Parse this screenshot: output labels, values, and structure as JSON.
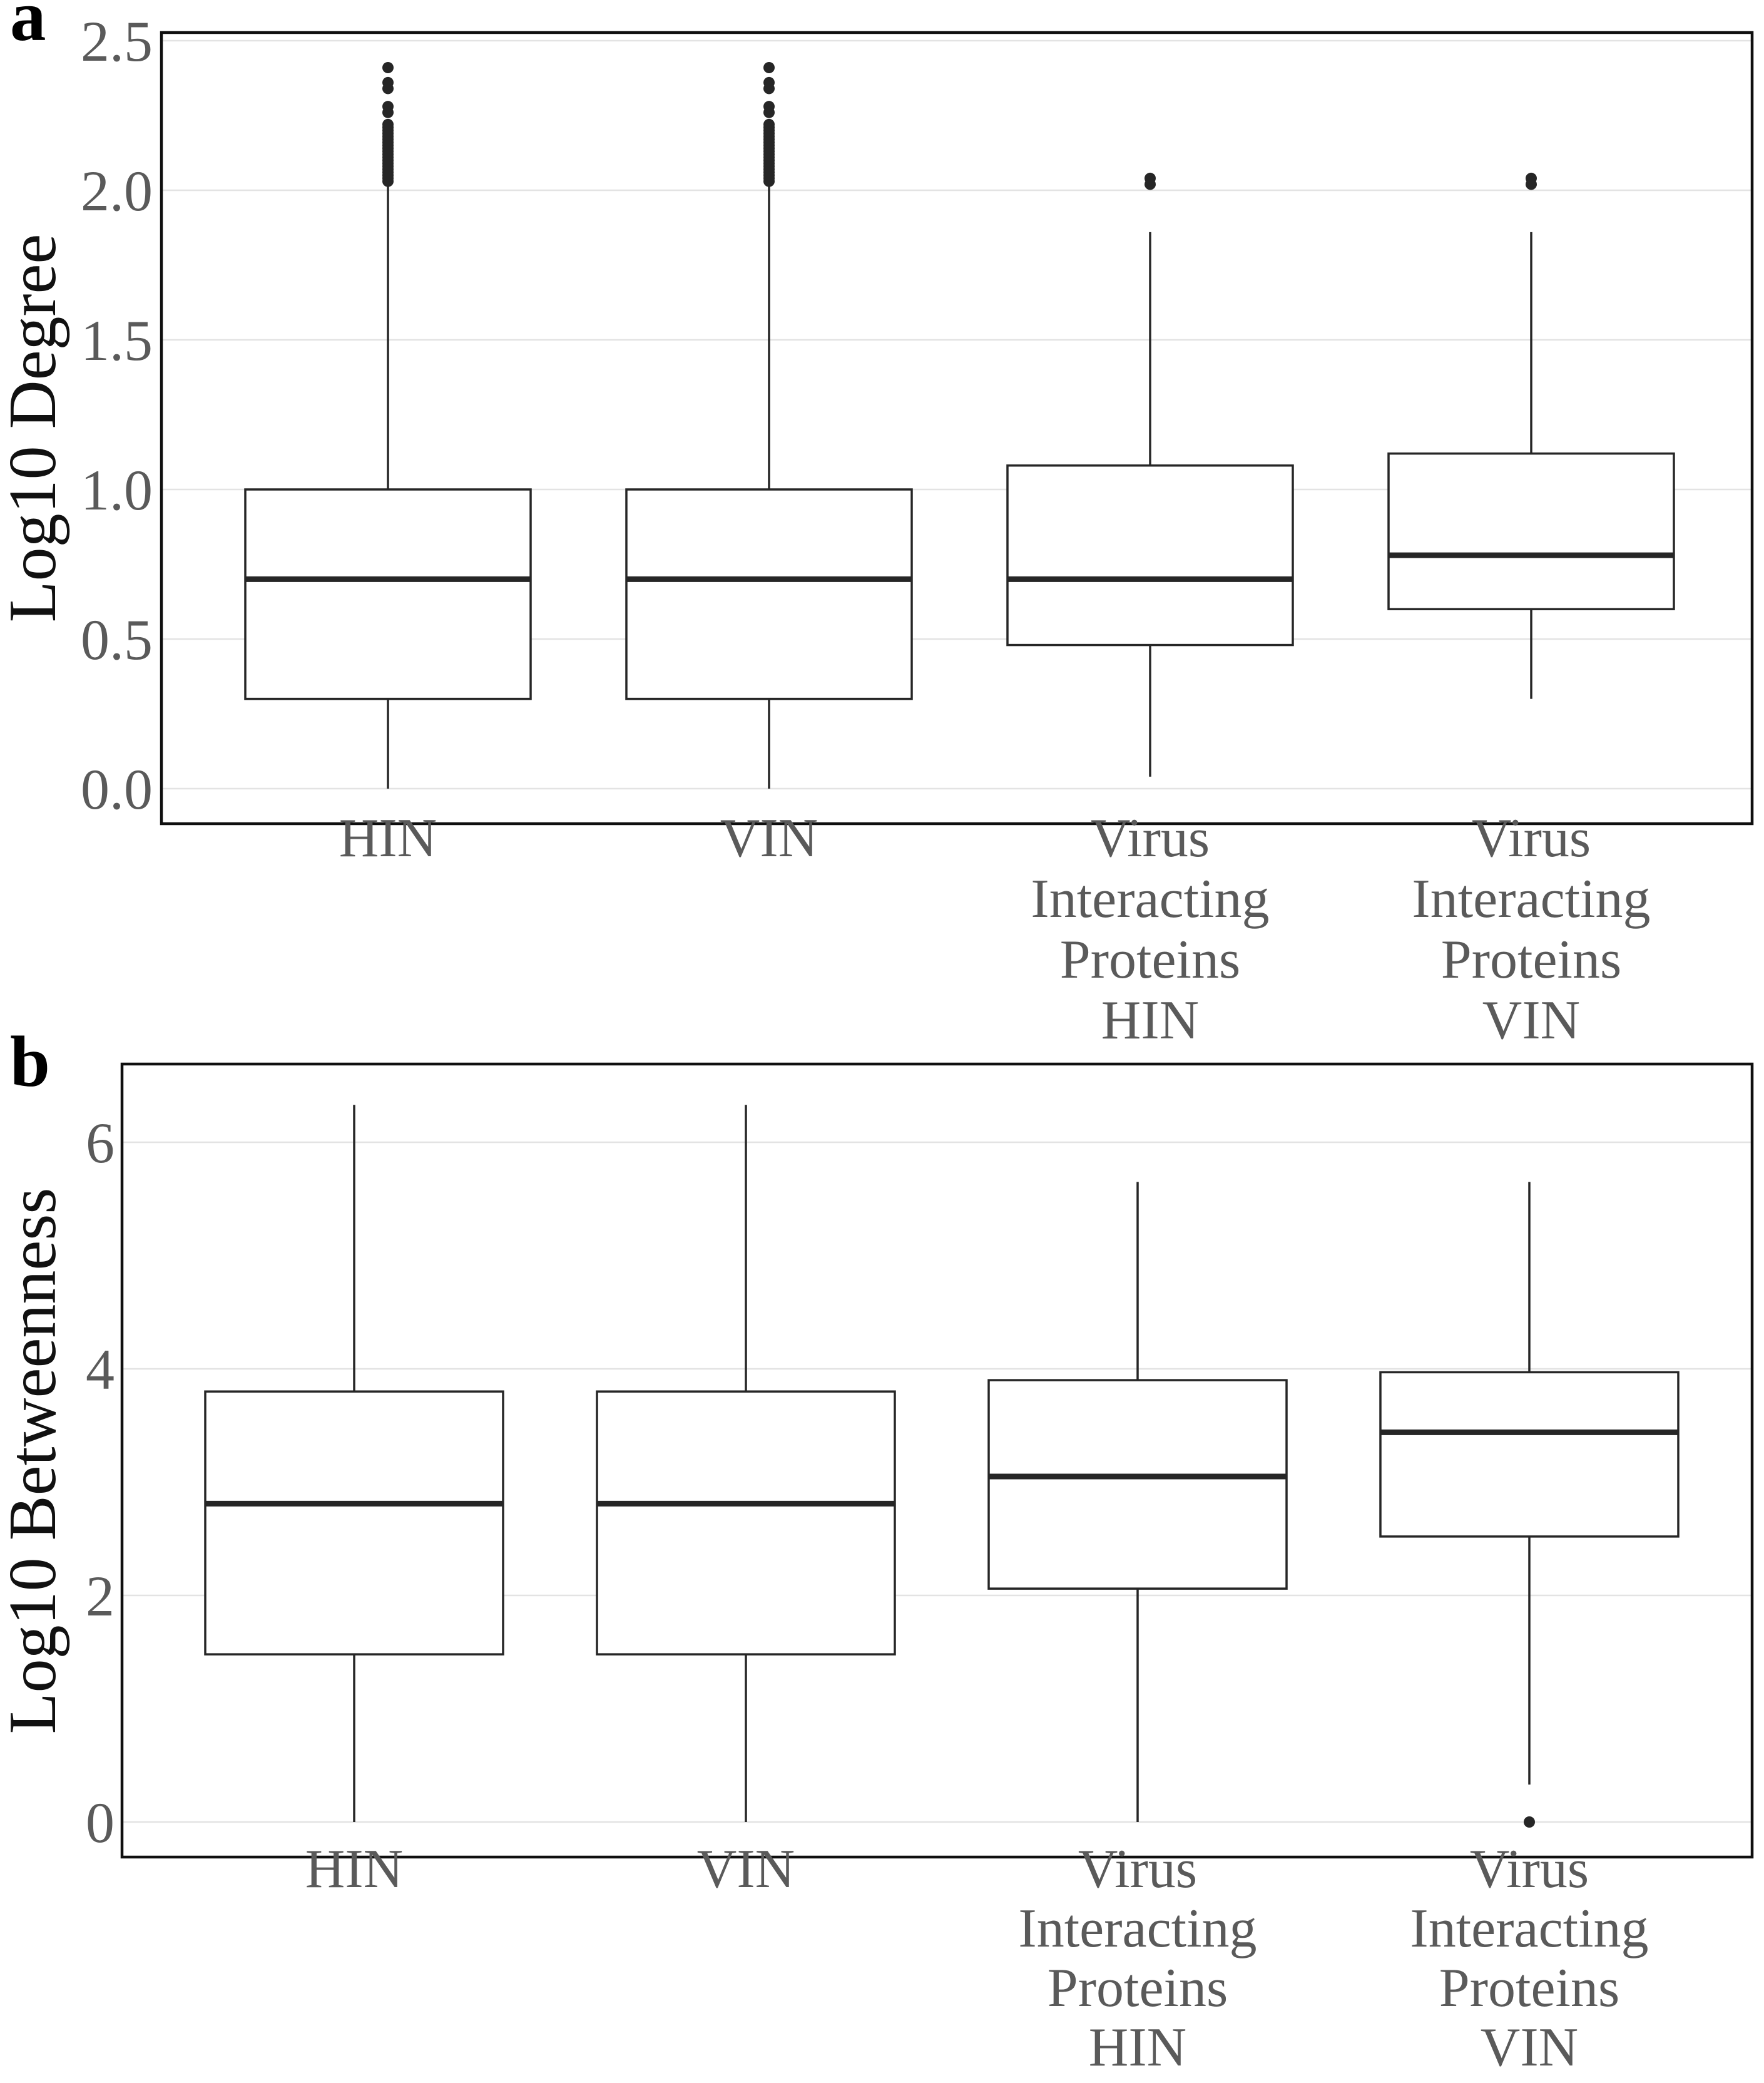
{
  "figure": {
    "background_color": "#ffffff",
    "box_stroke_color": "#262626",
    "gridline_color": "#e3e3e3",
    "border_color": "#0f0f0f",
    "label_color": "#5a5a5a"
  },
  "chart_data": [
    {
      "type": "box",
      "panel_letter": "a",
      "ylabel": "Log10 Degree",
      "yticks": [
        0.0,
        0.5,
        1.0,
        1.5,
        2.0,
        2.5
      ],
      "ytick_labels": [
        "0.0",
        "0.5",
        "1.0",
        "1.5",
        "2.0",
        "2.5"
      ],
      "ylim": [
        -0.12,
        2.53
      ],
      "grid": true,
      "legend": "none",
      "categories": [
        [
          "HIN"
        ],
        [
          "VIN"
        ],
        [
          "Virus",
          "Interacting",
          "Proteins",
          "HIN"
        ],
        [
          "Virus",
          "Interacting",
          "Proteins",
          "VIN"
        ]
      ],
      "series": [
        {
          "name": "HIN",
          "whisker_low": 0.0,
          "q1": 0.3,
          "median": 0.7,
          "q3": 1.0,
          "whisker_high": 2.03,
          "outliers": [
            2.41,
            2.36,
            2.34,
            2.28,
            2.26,
            2.22,
            2.21,
            2.2,
            2.19,
            2.18,
            2.17,
            2.16,
            2.15,
            2.14,
            2.13,
            2.12,
            2.11,
            2.1,
            2.09,
            2.08,
            2.07,
            2.06,
            2.05,
            2.04,
            2.03
          ]
        },
        {
          "name": "VIN",
          "whisker_low": 0.0,
          "q1": 0.3,
          "median": 0.7,
          "q3": 1.0,
          "whisker_high": 2.03,
          "outliers": [
            2.41,
            2.36,
            2.34,
            2.28,
            2.26,
            2.22,
            2.21,
            2.2,
            2.19,
            2.18,
            2.17,
            2.16,
            2.15,
            2.14,
            2.13,
            2.12,
            2.11,
            2.1,
            2.09,
            2.08,
            2.07,
            2.06,
            2.05,
            2.04,
            2.03
          ]
        },
        {
          "name": "Virus Interacting Proteins HIN",
          "whisker_low": 0.04,
          "q1": 0.48,
          "median": 0.7,
          "q3": 1.08,
          "whisker_high": 1.86,
          "outliers": [
            2.04,
            2.02
          ]
        },
        {
          "name": "Virus Interacting Proteins VIN",
          "whisker_low": 0.3,
          "q1": 0.6,
          "median": 0.78,
          "q3": 1.12,
          "whisker_high": 1.86,
          "outliers": [
            2.04,
            2.02
          ]
        }
      ]
    },
    {
      "type": "box",
      "panel_letter": "b",
      "ylabel": "Log10 Betweenness",
      "yticks": [
        0,
        2,
        4,
        6
      ],
      "ytick_labels": [
        "0",
        "2",
        "4",
        "6"
      ],
      "ylim": [
        -0.31,
        6.69
      ],
      "grid": true,
      "legend": "none",
      "categories": [
        [
          "HIN"
        ],
        [
          "VIN"
        ],
        [
          "Virus",
          "Interacting",
          "Proteins",
          "HIN"
        ],
        [
          "Virus",
          "Interacting",
          "Proteins",
          "VIN"
        ]
      ],
      "series": [
        {
          "name": "HIN",
          "whisker_low": 0.0,
          "q1": 1.48,
          "median": 2.81,
          "q3": 3.8,
          "whisker_high": 6.33,
          "outliers": []
        },
        {
          "name": "VIN",
          "whisker_low": 0.0,
          "q1": 1.48,
          "median": 2.81,
          "q3": 3.8,
          "whisker_high": 6.33,
          "outliers": []
        },
        {
          "name": "Virus Interacting Proteins HIN",
          "whisker_low": 0.0,
          "q1": 2.06,
          "median": 3.05,
          "q3": 3.9,
          "whisker_high": 5.65,
          "outliers": []
        },
        {
          "name": "Virus Interacting Proteins VIN",
          "whisker_low": 0.33,
          "q1": 2.52,
          "median": 3.44,
          "q3": 3.97,
          "whisker_high": 5.65,
          "outliers": [
            0.0
          ]
        }
      ]
    }
  ]
}
